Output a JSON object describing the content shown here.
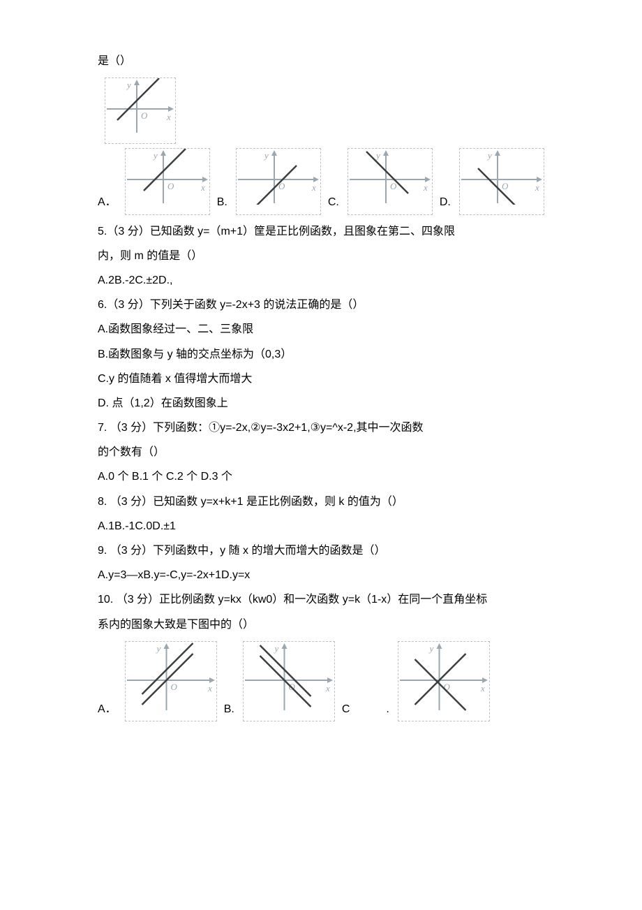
{
  "colors": {
    "axis": "#9aa7af",
    "line_dark": "#3b3f3f",
    "border_dash": "#bfbfbf",
    "text": "#000000",
    "bg": "#ffffff"
  },
  "q4": {
    "intro": "是（）",
    "graph_top": {
      "w": 100,
      "h": 80,
      "yint_sign": 1,
      "slope": 1
    },
    "options": [
      {
        "label": "A．",
        "w": 120,
        "h": 80,
        "yint_sign": 1,
        "slope": 1
      },
      {
        "label": "B.",
        "w": 120,
        "h": 80,
        "yint_sign": -1,
        "slope": 1
      },
      {
        "label": "C.",
        "w": 120,
        "h": 80,
        "yint_sign": 1,
        "slope": -1
      },
      {
        "label": "D.",
        "w": 120,
        "h": 80,
        "yint_sign": -1,
        "slope": -1
      }
    ]
  },
  "q5": {
    "line1": "5.（3 分）已知函数 y=（m+1）筐是正比例函数，且图象在第二、四象限",
    "line2": "内，则 m 的值是（）",
    "line3": "A.2B.-2C.±2D.,"
  },
  "q6": {
    "stem": "6.（3 分）下列关于函数 y=-2x+3 的说法正确的是（）",
    "a": "A.函数图象经过一、二、三象限",
    "b": "B.函数图象与 y 轴的交点坐标为（0,3）",
    "c": "C.y 的值随着 x 值得增大而增大",
    "d": "D. 点（1,2）在函数图象上"
  },
  "q7": {
    "line1": "7. （3 分）下列函数：①y=-2x,②y=-3x2+1,③y=^x-2,其中一次函数",
    "line2": "的个数有（）",
    "line3": "A.0 个 B.1 个 C.2 个 D.3 个"
  },
  "q8": {
    "line1": "8. （3 分）已知函数 y=x+k+1 是正比例函数，则 k 的值为（）",
    "line2": "A.1B.-1C.0D.±1"
  },
  "q9": {
    "line1": "9. （3 分）下列函数中，y 随 x 的增大而增大的函数是（）",
    "line2": "A.y=3—xB.y=-C,y=-2x+1D.y=x"
  },
  "q10": {
    "line1": "10. （3 分）正比例函数 y=kx（kw0）和一次函数 y=k（1-x）在同一个直角坐标",
    "line2": "系内的图象大致是下图中的（）",
    "options": [
      {
        "label": "A．",
        "w": 130,
        "h": 100,
        "mode": "two_pos"
      },
      {
        "label": "B.",
        "w": 130,
        "h": 100,
        "mode": "two_neg"
      },
      {
        "label": "C",
        "w": 30,
        "h": 10,
        "mode": "none",
        "spacer": true
      },
      {
        "label": ".",
        "w": 130,
        "h": 100,
        "mode": "cross_mix",
        "prelabel": ""
      }
    ]
  }
}
